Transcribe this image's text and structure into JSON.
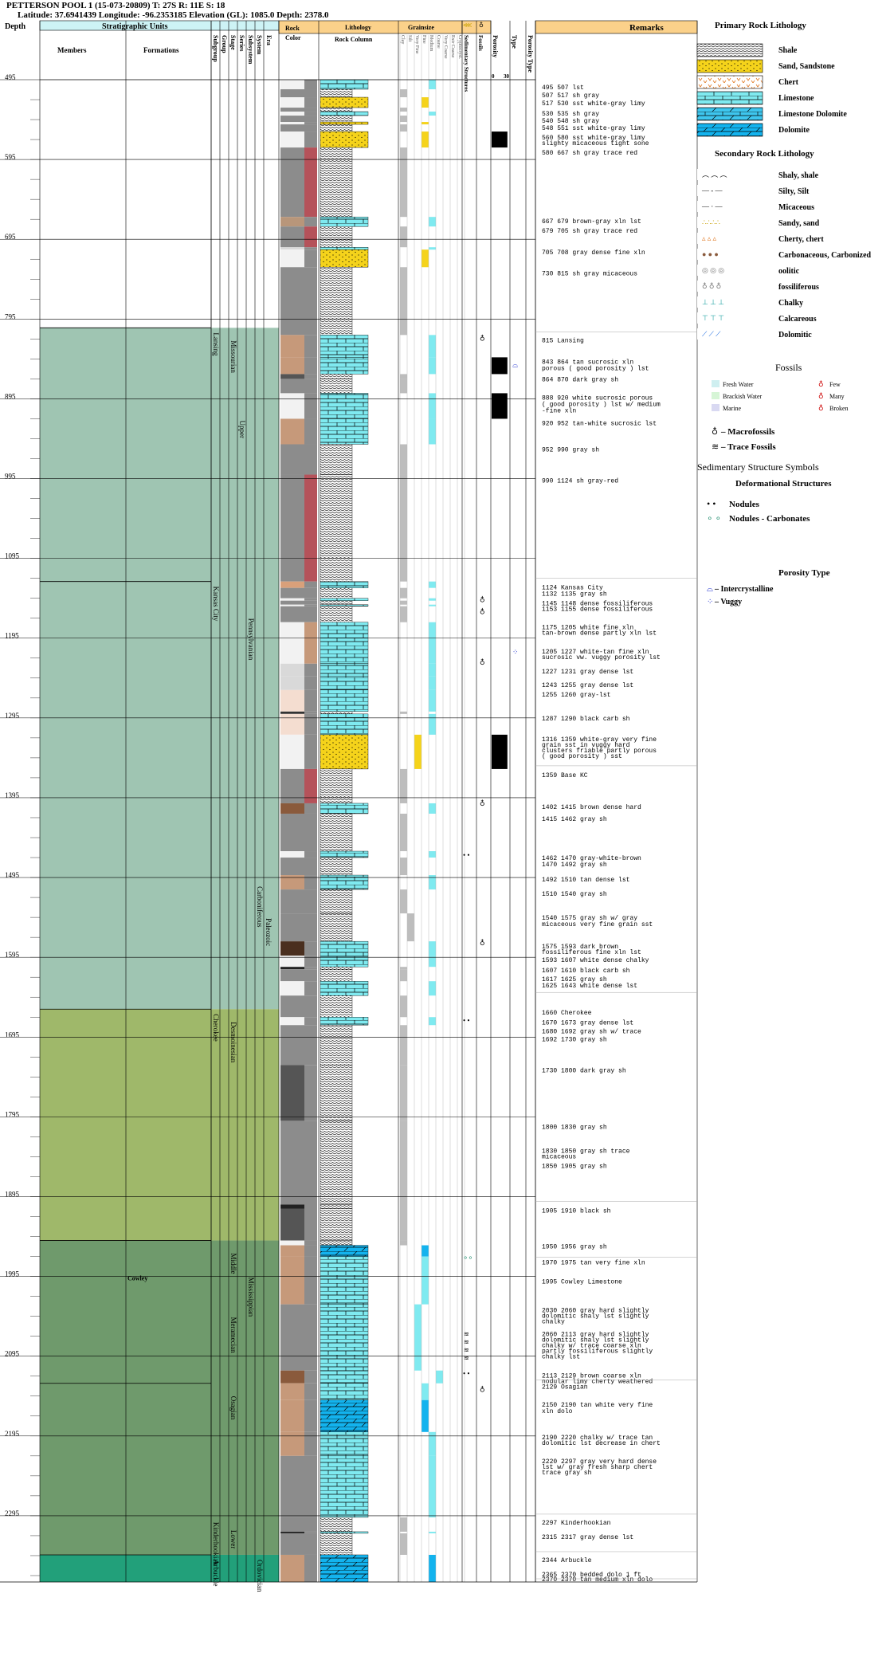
{
  "header": {
    "title": "PETTERSON POOL 1 (15-073-20809) T: 27S R: 11E S: 18",
    "subtitle": "Latitude: 37.6941439 Longitude: -96.2353185 Elevation (GL): 1085.0 Depth: 2378.0"
  },
  "columns": {
    "depth": "Depth",
    "strat_units": "Stratigraphic Units",
    "members": "Members",
    "formations": "Formations",
    "subgroup": "Subgroup",
    "group": "Group",
    "stage": "Stage",
    "series": "Series",
    "subsystem": "Subsystem",
    "system": "System",
    "era": "Era",
    "rock_color": "Rock\nColor",
    "lithology": "Lithology",
    "rock_column": "Rock Column",
    "grainsize": "Grainsize",
    "gs_scale": [
      "Clay",
      "Silt",
      "Very Fine",
      "Fine",
      "Medium",
      "Coarse",
      "Very Coarse",
      "Extr Coarse",
      "Cryptocryst."
    ],
    "sed_struct": "Sedimentary Structures",
    "fossils": "Fossils",
    "porosity": "Porosity",
    "porosity_scale": [
      "0",
      "30"
    ],
    "type": "Type",
    "porosity_type": "Porosity Type",
    "remarks": "Remarks"
  },
  "depth_ticks": [
    "495",
    "595",
    "695",
    "795",
    "895",
    "995",
    "1095",
    "1195",
    "1295",
    "1395",
    "1495",
    "1595",
    "1695",
    "1795",
    "1895",
    "1995",
    "2095",
    "2195",
    "2295"
  ],
  "strat": {
    "subgroups": [
      {
        "name": "Lansing",
        "from": 806,
        "to": 924
      },
      {
        "name": "Kansas City",
        "from": 1124,
        "to": 1378
      },
      {
        "name": "Cherokee",
        "from": 1660,
        "to": 1692
      },
      {
        "name": "Kinderhookian",
        "from": 2297,
        "to": 2344
      },
      {
        "name": "Arbuckle",
        "from": 2344,
        "to": 2378
      }
    ],
    "stages": [
      {
        "name": "Missourian",
        "from": 806,
        "to": 1124
      },
      {
        "name": "Desmoinesian",
        "from": 1660,
        "to": 1900
      },
      {
        "name": "Middle",
        "from": 1950,
        "to": 2030
      },
      {
        "name": "Meramecian",
        "from": 2030,
        "to": 2129
      },
      {
        "name": "Osagian",
        "from": 2129,
        "to": 2297
      },
      {
        "name": "Lower",
        "from": 2297,
        "to": 2344
      }
    ],
    "series": [
      {
        "name": "Upper",
        "from": 806,
        "to": 1124
      }
    ],
    "subsystem": [
      {
        "name": "Pennsylvanian",
        "from": 1124,
        "to": 1660
      },
      {
        "name": "Mississippian",
        "from": 1950,
        "to": 2297
      }
    ],
    "system": [
      {
        "name": "Carboniferous",
        "from": 1500,
        "to": 1660
      },
      {
        "name": "Ordovician",
        "from": 2344,
        "to": 2378
      }
    ],
    "era": [
      {
        "name": "Paleozoic",
        "from": 1540,
        "to": 1660
      }
    ],
    "formation_label": {
      "name": "Cowley",
      "at": 2000
    }
  },
  "remarks": [
    {
      "d": 507,
      "t": "495 507 lst"
    },
    {
      "d": 517,
      "t": "507 517 sh gray"
    },
    {
      "d": 527,
      "t": "517 530 sst white-gray limy"
    },
    {
      "d": 540,
      "t": "530 535 sh gray"
    },
    {
      "d": 549,
      "t": "540 548 sh gray"
    },
    {
      "d": 558,
      "t": "548 551 sst white-gray limy"
    },
    {
      "d": 570,
      "t": "560 580 sst white-gray limy"
    },
    {
      "d": 577,
      "t": "slighty micaceous tight sone"
    },
    {
      "d": 589,
      "t": "580 667 sh gray trace red"
    },
    {
      "d": 675,
      "t": "667 679 brown-gray xln lst"
    },
    {
      "d": 687,
      "t": "679 705 sh gray trace red"
    },
    {
      "d": 714,
      "t": "705 708 gray dense fine xln"
    },
    {
      "d": 740,
      "t": "730 815 sh gray micaceous"
    },
    {
      "d": 824,
      "t": "815 Lansing"
    },
    {
      "d": 851,
      "t": "843 864 tan sucrosic xln"
    },
    {
      "d": 859,
      "t": "porous ( good porosity ) lst"
    },
    {
      "d": 873,
      "t": "864 870 dark gray sh"
    },
    {
      "d": 896,
      "t": "888 920 white sucrosic porous"
    },
    {
      "d": 904,
      "t": "( good porosity ) lst w/ medium"
    },
    {
      "d": 912,
      "t": "-fine xln"
    },
    {
      "d": 928,
      "t": "920 952 tan-white sucrosic lst"
    },
    {
      "d": 961,
      "t": "952 990 gray sh"
    },
    {
      "d": 1000,
      "t": "990 1124 sh gray-red"
    },
    {
      "d": 1134,
      "t": "1124 Kansas City"
    },
    {
      "d": 1142,
      "t": "1132 1135 gray sh"
    },
    {
      "d": 1154,
      "t": "1145 1148 dense fossiliferous"
    },
    {
      "d": 1161,
      "t": "1153 1155 dense fossiliferous"
    },
    {
      "d": 1184,
      "t": "1175 1205 white fine xln"
    },
    {
      "d": 1191,
      "t": "tan-brown dense partly xln lst"
    },
    {
      "d": 1214,
      "t": "1205 1227 white-tan fine xln"
    },
    {
      "d": 1221,
      "t": "sucrosic vw. vuggy porosity lst"
    },
    {
      "d": 1239,
      "t": "1227 1231 gray dense lst"
    },
    {
      "d": 1256,
      "t": "1243 1255 gray dense lst"
    },
    {
      "d": 1268,
      "t": "1255 1260 gray-lst"
    },
    {
      "d": 1298,
      "t": "1287 1290 black carb sh"
    },
    {
      "d": 1324,
      "t": "1316 1359 white-gray very fine"
    },
    {
      "d": 1331,
      "t": "grain sst in vuggy hard"
    },
    {
      "d": 1338,
      "t": "clusters friable partly porous"
    },
    {
      "d": 1345,
      "t": "( good porosity ) sst"
    },
    {
      "d": 1369,
      "t": "1359 Base KC"
    },
    {
      "d": 1409,
      "t": "1402 1415 brown dense hard"
    },
    {
      "d": 1424,
      "t": "1415 1462 gray sh"
    },
    {
      "d": 1473,
      "t": "1462 1470 gray-white-brown"
    },
    {
      "d": 1481,
      "t": "1470 1492 gray sh"
    },
    {
      "d": 1500,
      "t": "1492 1510 tan dense lst"
    },
    {
      "d": 1518,
      "t": "1510 1540 gray sh"
    },
    {
      "d": 1548,
      "t": "1540 1575 gray sh w/ gray"
    },
    {
      "d": 1556,
      "t": "micaceous very fine grain sst"
    },
    {
      "d": 1584,
      "t": "1575 1593 dark brown"
    },
    {
      "d": 1591,
      "t": "fossiliferous fine xln lst"
    },
    {
      "d": 1601,
      "t": "1593 1607 white dense chalky"
    },
    {
      "d": 1614,
      "t": "1607 1610 black carb sh"
    },
    {
      "d": 1625,
      "t": "1617 1625 gray sh"
    },
    {
      "d": 1633,
      "t": "1625 1643 white dense lst"
    },
    {
      "d": 1667,
      "t": "1660 Cherokee"
    },
    {
      "d": 1679,
      "t": "1670 1673 gray dense lst"
    },
    {
      "d": 1690,
      "t": "1680 1692 gray sh w/ trace"
    },
    {
      "d": 1700,
      "t": "1692 1730 gray sh"
    },
    {
      "d": 1739,
      "t": "1730 1800 dark gray sh"
    },
    {
      "d": 1810,
      "t": "1800 1830 gray sh"
    },
    {
      "d": 1840,
      "t": "1830 1850 gray sh trace"
    },
    {
      "d": 1847,
      "t": "micaceous"
    },
    {
      "d": 1859,
      "t": "1850 1905 gray sh"
    },
    {
      "d": 1915,
      "t": "1905 1910 black sh"
    },
    {
      "d": 1960,
      "t": "1950 1956 gray sh"
    },
    {
      "d": 1980,
      "t": "1970 1975 tan very fine xln"
    },
    {
      "d": 2004,
      "t": "1995 Cowley Limestone"
    },
    {
      "d": 2040,
      "t": "2030 2060 gray hard slightly"
    },
    {
      "d": 2047,
      "t": "dolomitic shaly lst slightly"
    },
    {
      "d": 2054,
      "t": "chalky"
    },
    {
      "d": 2070,
      "t": "2060 2113 gray hard slightly"
    },
    {
      "d": 2077,
      "t": "dolomitic shaly lst slightly"
    },
    {
      "d": 2084,
      "t": "chalky w/ trace coarse xln"
    },
    {
      "d": 2091,
      "t": "partly fossiliferous slightly"
    },
    {
      "d": 2098,
      "t": "chalky lst"
    },
    {
      "d": 2122,
      "t": "2113 2129 brown coarse xln"
    },
    {
      "d": 2129,
      "t": "nodular limy cherty weathered"
    },
    {
      "d": 2136,
      "t": "2129 Osagian"
    },
    {
      "d": 2158,
      "t": "2150 2190 tan white very fine"
    },
    {
      "d": 2166,
      "t": "xln dolo"
    },
    {
      "d": 2199,
      "t": "2190 2220 chalky w/ trace tan"
    },
    {
      "d": 2206,
      "t": "dolomitic lst decrease in chert"
    },
    {
      "d": 2229,
      "t": "2220 2297 gray very hard dense"
    },
    {
      "d": 2236,
      "t": "lst w/ gray fresh sharp chert"
    },
    {
      "d": 2243,
      "t": "trace gray sh"
    },
    {
      "d": 2306,
      "t": "2297 Kinderhookian"
    },
    {
      "d": 2324,
      "t": "2315 2317 gray dense lst"
    },
    {
      "d": 2353,
      "t": "2344 Arbuckle"
    },
    {
      "d": 2371,
      "t": "2365 2370 bedded dolo 1 ft"
    },
    {
      "d": 2377,
      "t": "2370 2370 tan medium xln dolo"
    }
  ],
  "intervals": [
    {
      "f": 495,
      "t": 507,
      "lith": "lst",
      "color": "#f2f2f2",
      "gs": 5
    },
    {
      "f": 507,
      "t": 517,
      "lith": "sh",
      "color": "#8c8c8c",
      "gs": 1
    },
    {
      "f": 517,
      "t": 530,
      "lith": "sst",
      "color": "#f2f2f2",
      "gs": 4
    },
    {
      "f": 530,
      "t": 535,
      "lith": "sh",
      "color": "#8c8c8c",
      "gs": 1
    },
    {
      "f": 535,
      "t": 540,
      "lith": "lst",
      "color": "#f2f2f2",
      "gs": 5
    },
    {
      "f": 540,
      "t": 548,
      "lith": "sh",
      "color": "#8c8c8c",
      "gs": 1
    },
    {
      "f": 548,
      "t": 551,
      "lith": "sst",
      "color": "#f2f2f2",
      "gs": 4
    },
    {
      "f": 551,
      "t": 560,
      "lith": "sh",
      "color": "#8c8c8c",
      "gs": 1
    },
    {
      "f": 560,
      "t": 580,
      "lith": "sst",
      "color": "#f2f2f2",
      "gs": 4
    },
    {
      "f": 580,
      "t": 667,
      "lith": "sh",
      "color": "#8c8c8c",
      "gs": 1,
      "accent": "#b5525a"
    },
    {
      "f": 667,
      "t": 679,
      "lith": "lst",
      "color": "#b8967a",
      "gs": 5
    },
    {
      "f": 679,
      "t": 705,
      "lith": "sh",
      "color": "#8c8c8c",
      "gs": 1,
      "accent": "#b5525a"
    },
    {
      "f": 705,
      "t": 708,
      "lith": "lst",
      "color": "#d9d9d9",
      "gs": 5
    },
    {
      "f": 708,
      "t": 730,
      "lith": "sst",
      "color": "#f2f2f2",
      "gs": 4
    },
    {
      "f": 730,
      "t": 815,
      "lith": "sh",
      "color": "#8c8c8c",
      "gs": 1
    },
    {
      "f": 815,
      "t": 843,
      "lith": "lst",
      "color": "#c6997a",
      "gs": 5
    },
    {
      "f": 843,
      "t": 864,
      "lith": "lst",
      "color": "#c6997a",
      "gs": 5
    },
    {
      "f": 864,
      "t": 870,
      "lith": "sh",
      "color": "#555555",
      "gs": 1
    },
    {
      "f": 870,
      "t": 888,
      "lith": "sh",
      "color": "#8c8c8c",
      "gs": 1
    },
    {
      "f": 888,
      "t": 920,
      "lith": "lst",
      "color": "#f2f2f2",
      "gs": 5
    },
    {
      "f": 920,
      "t": 952,
      "lith": "lst",
      "color": "#c6997a",
      "gs": 5
    },
    {
      "f": 952,
      "t": 990,
      "lith": "sh",
      "color": "#8c8c8c",
      "gs": 1
    },
    {
      "f": 990,
      "t": 1124,
      "lith": "sh",
      "color": "#8c8c8c",
      "gs": 1,
      "accent": "#b5525a"
    },
    {
      "f": 1124,
      "t": 1132,
      "lith": "lst",
      "color": "#d9a07a",
      "gs": 5
    },
    {
      "f": 1132,
      "t": 1145,
      "lith": "sh",
      "color": "#8c8c8c",
      "gs": 1
    },
    {
      "f": 1145,
      "t": 1148,
      "lith": "lst",
      "color": "#f2f2f2",
      "gs": 5
    },
    {
      "f": 1148,
      "t": 1153,
      "lith": "sh",
      "color": "#8c8c8c",
      "gs": 1
    },
    {
      "f": 1153,
      "t": 1155,
      "lith": "lst",
      "color": "#f2f2f2",
      "gs": 5
    },
    {
      "f": 1155,
      "t": 1175,
      "lith": "sh",
      "color": "#8c8c8c",
      "gs": 1
    },
    {
      "f": 1175,
      "t": 1227,
      "lith": "lst",
      "color": "#f2f2f2",
      "gs": 5,
      "accent": "#c6997a"
    },
    {
      "f": 1227,
      "t": 1243,
      "lith": "lst",
      "color": "#d9d9d9",
      "gs": 5
    },
    {
      "f": 1243,
      "t": 1260,
      "lith": "lst",
      "color": "#d9d9d9",
      "gs": 5
    },
    {
      "f": 1260,
      "t": 1287,
      "lith": "lst",
      "color": "#f4ddd0",
      "gs": 5
    },
    {
      "f": 1287,
      "t": 1290,
      "lith": "sh",
      "color": "#333333",
      "gs": 1
    },
    {
      "f": 1290,
      "t": 1316,
      "lith": "lst",
      "color": "#f4ddd0",
      "gs": 5
    },
    {
      "f": 1316,
      "t": 1359,
      "lith": "sst",
      "color": "#f2f2f2",
      "gs": 3
    },
    {
      "f": 1359,
      "t": 1402,
      "lith": "sh",
      "color": "#8c8c8c",
      "gs": 1,
      "accent": "#b5525a"
    },
    {
      "f": 1402,
      "t": 1415,
      "lith": "lst",
      "color": "#8a5a3c",
      "gs": 5
    },
    {
      "f": 1415,
      "t": 1462,
      "lith": "sh",
      "color": "#8c8c8c",
      "gs": 1
    },
    {
      "f": 1462,
      "t": 1470,
      "lith": "lst",
      "color": "#f2f2f2",
      "gs": 5
    },
    {
      "f": 1470,
      "t": 1492,
      "lith": "sh",
      "color": "#8c8c8c",
      "gs": 1
    },
    {
      "f": 1492,
      "t": 1510,
      "lith": "lst",
      "color": "#c6997a",
      "gs": 5
    },
    {
      "f": 1510,
      "t": 1540,
      "lith": "sh",
      "color": "#8c8c8c",
      "gs": 1
    },
    {
      "f": 1540,
      "t": 1575,
      "lith": "sh",
      "color": "#8c8c8c",
      "gs": 2,
      "sandy": true
    },
    {
      "f": 1575,
      "t": 1593,
      "lith": "lst",
      "color": "#4a2f1f",
      "gs": 5
    },
    {
      "f": 1593,
      "t": 1607,
      "lith": "lst",
      "color": "#f2f2f2",
      "gs": 5
    },
    {
      "f": 1607,
      "t": 1610,
      "lith": "sh",
      "color": "#222222",
      "gs": 1
    },
    {
      "f": 1610,
      "t": 1625,
      "lith": "sh",
      "color": "#8c8c8c",
      "gs": 1
    },
    {
      "f": 1625,
      "t": 1643,
      "lith": "lst",
      "color": "#f2f2f2",
      "gs": 5
    },
    {
      "f": 1643,
      "t": 1670,
      "lith": "sh",
      "color": "#8c8c8c",
      "gs": 1
    },
    {
      "f": 1670,
      "t": 1680,
      "lith": "lst",
      "color": "#f2f2f2",
      "gs": 5
    },
    {
      "f": 1680,
      "t": 1730,
      "lith": "sh",
      "color": "#8c8c8c",
      "gs": 1
    },
    {
      "f": 1730,
      "t": 1800,
      "lith": "sh",
      "color": "#555555",
      "gs": 1
    },
    {
      "f": 1800,
      "t": 1905,
      "lith": "sh",
      "color": "#8c8c8c",
      "gs": 1
    },
    {
      "f": 1905,
      "t": 1910,
      "lith": "sh",
      "color": "#222222",
      "gs": 1
    },
    {
      "f": 1910,
      "t": 1950,
      "lith": "sh",
      "color": "#555555",
      "gs": 1
    },
    {
      "f": 1950,
      "t": 1956,
      "lith": "sh",
      "color": "#f2f2f2",
      "gs": 1
    },
    {
      "f": 1956,
      "t": 1970,
      "lith": "dolo",
      "color": "#c6997a",
      "gs": 4
    },
    {
      "f": 1970,
      "t": 2030,
      "lith": "lst",
      "color": "#c6997a",
      "gs": 4
    },
    {
      "f": 2030,
      "t": 2113,
      "lith": "lst",
      "color": "#8c8c8c",
      "gs": 3
    },
    {
      "f": 2113,
      "t": 2129,
      "lith": "lst",
      "color": "#8a5a3c",
      "gs": 6
    },
    {
      "f": 2129,
      "t": 2150,
      "lith": "lst",
      "color": "#c6997a",
      "gs": 4
    },
    {
      "f": 2150,
      "t": 2190,
      "lith": "dolo",
      "color": "#c6997a",
      "gs": 4
    },
    {
      "f": 2190,
      "t": 2220,
      "lith": "lst",
      "color": "#c6997a",
      "gs": 5
    },
    {
      "f": 2220,
      "t": 2297,
      "lith": "lst",
      "color": "#8c8c8c",
      "gs": 5
    },
    {
      "f": 2297,
      "t": 2315,
      "lith": "sh",
      "color": "#8c8c8c",
      "gs": 1
    },
    {
      "f": 2315,
      "t": 2317,
      "lith": "lst",
      "color": "#222222",
      "gs": 5
    },
    {
      "f": 2317,
      "t": 2344,
      "lith": "sh",
      "color": "#8c8c8c",
      "gs": 1
    },
    {
      "f": 2344,
      "t": 2378,
      "lith": "dolo",
      "color": "#c6997a",
      "gs": 5
    }
  ],
  "porosity": [
    {
      "f": 560,
      "t": 580,
      "v": 0.9
    },
    {
      "f": 843,
      "t": 864,
      "v": 0.9
    },
    {
      "f": 888,
      "t": 920,
      "v": 0.9
    },
    {
      "f": 1316,
      "t": 1359,
      "v": 0.9
    }
  ],
  "porosity_type": [
    {
      "d": 855,
      "type": "intercrystalline"
    },
    {
      "d": 1215,
      "type": "vuggy"
    }
  ],
  "fossil_marks": [
    {
      "d": 822,
      "sym": "macro"
    },
    {
      "d": 1150,
      "sym": "macro"
    },
    {
      "d": 1165,
      "sym": "macro"
    },
    {
      "d": 1228,
      "sym": "macro"
    },
    {
      "d": 1405,
      "sym": "macro"
    },
    {
      "d": 1580,
      "sym": "macro"
    },
    {
      "d": 2140,
      "sym": "macro"
    }
  ],
  "sed_marks": [
    {
      "d": 1470,
      "sym": "nodules"
    },
    {
      "d": 1677,
      "sym": "nodules"
    },
    {
      "d": 1975,
      "sym": "nodules-carb"
    },
    {
      "d": 2120,
      "sym": "nodules"
    },
    {
      "d": 2070,
      "sym": "trace"
    },
    {
      "d": 2080,
      "sym": "trace"
    },
    {
      "d": 2090,
      "sym": "trace"
    },
    {
      "d": 2100,
      "sym": "trace"
    }
  ],
  "legend": {
    "primary_title": "Primary Rock Lithology",
    "primary": [
      {
        "label": "Shale",
        "pattern": "shale"
      },
      {
        "label": "Sand, Sandstone",
        "pattern": "sand"
      },
      {
        "label": "Chert",
        "pattern": "chert"
      },
      {
        "label": "Limestone",
        "pattern": "lst"
      },
      {
        "label": "Limestone Dolomite",
        "pattern": "lstdolo"
      },
      {
        "label": "Dolomite",
        "pattern": "dolo"
      }
    ],
    "secondary_title": "Secondary Rock Lithology",
    "secondary": [
      {
        "label": "Shaly, shale"
      },
      {
        "label": "Silty, Silt"
      },
      {
        "label": "Micaceous"
      },
      {
        "label": "Sandy, sand"
      },
      {
        "label": "Cherty, chert"
      },
      {
        "label": "Carbonaceous, Carbonized"
      },
      {
        "label": "oolitic"
      },
      {
        "label": "fossiliferous"
      },
      {
        "label": "Chalky"
      },
      {
        "label": "Calcareous"
      },
      {
        "label": "Dolomitic"
      }
    ],
    "fossils_title": "Fossils",
    "fossil_env": [
      {
        "label": "Fresh Water",
        "color": "#cfeff0"
      },
      {
        "label": "Brackish Water",
        "color": "#d6f5d6"
      },
      {
        "label": "Marine",
        "color": "#d9d9f2"
      }
    ],
    "fossil_abund": [
      {
        "label": "Few"
      },
      {
        "label": "Many"
      },
      {
        "label": "Broken"
      }
    ],
    "macrofossils": "– Macrofossils",
    "trace_fossils": "– Trace Fossils",
    "sed_title": "Sedimentary Structure Symbols",
    "deform_title": "Deformational Structures",
    "nodules": "Nodules",
    "nodules_carb": "Nodules - Carbonates",
    "porosity_type_title": "Porosity Type",
    "intercrystalline": "– Intercrystalline",
    "vuggy": "– Vuggy"
  },
  "colors": {
    "header_blue": "#cdf3f5",
    "header_orange": "#fbd18a",
    "lansing_band": "#9fc5b2",
    "cherokee_band": "#9fb86a",
    "miss_band": "#6f9a6c",
    "arbuckle_band": "#22a07a",
    "limestone": "#7feaf0",
    "dolomite": "#13b3ee",
    "sand": "#f5d31b"
  }
}
